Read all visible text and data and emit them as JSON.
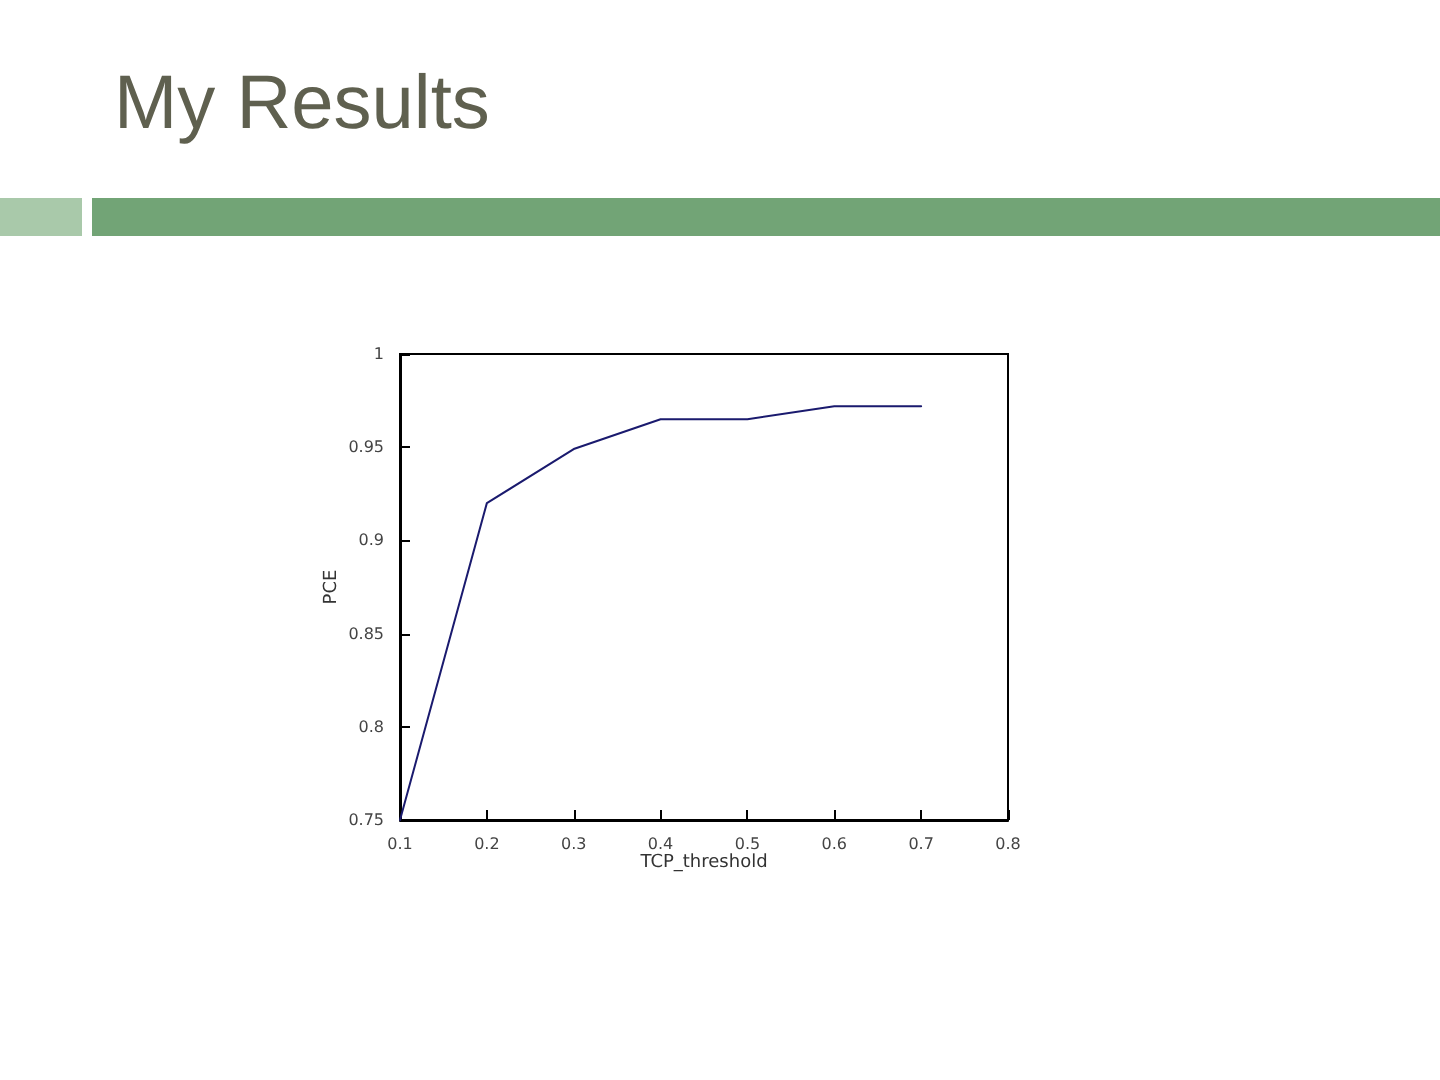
{
  "chart_data": {
    "type": "line",
    "title": "My Results",
    "xlabel": "TCP_threshold",
    "ylabel": "PCE",
    "x": [
      0.1,
      0.2,
      0.3,
      0.4,
      0.5,
      0.6,
      0.7
    ],
    "series": [
      {
        "color": "#1a1a6e",
        "values": [
          0.75,
          0.92,
          0.949,
          0.965,
          0.965,
          0.972,
          0.972
        ]
      }
    ],
    "xlim": [
      0.1,
      0.8
    ],
    "xticks": [
      0.1,
      0.2,
      0.3,
      0.4,
      0.5,
      0.6,
      0.7,
      0.8
    ],
    "ylim": [
      0.75,
      1
    ],
    "yticks": [
      0.75,
      0.8,
      0.85,
      0.9,
      0.95,
      1
    ],
    "grid": false,
    "marker": "none",
    "line_style": "solid"
  }
}
